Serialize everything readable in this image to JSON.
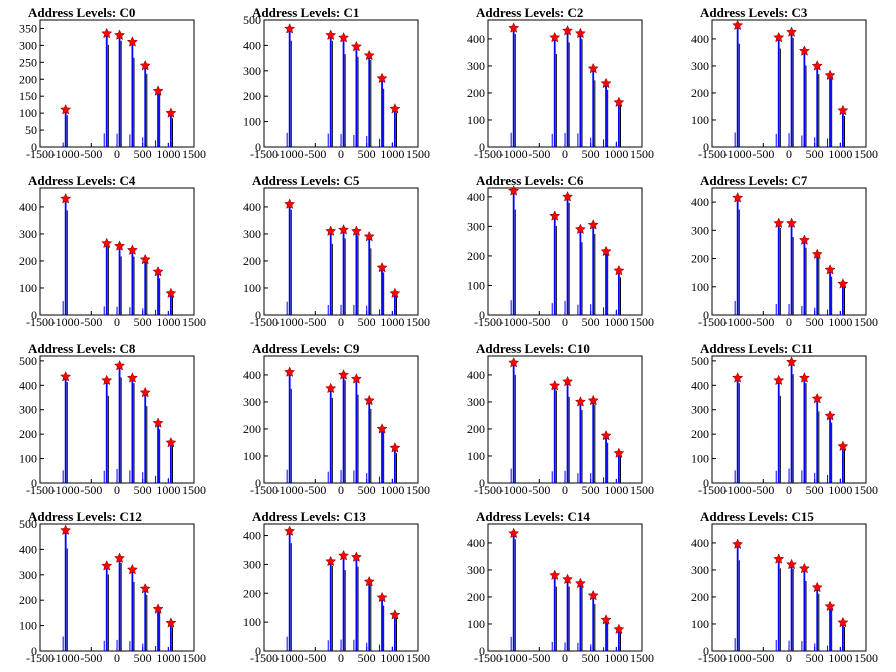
{
  "marker_color": "#ff0000",
  "bar_colors": {
    "peak": "#0000ff",
    "secondary": "#000000"
  },
  "chart_data": [
    {
      "type": "bar",
      "title": "Address Levels: C0",
      "xlim": [
        -1500,
        1500
      ],
      "ylim": [
        0,
        375
      ],
      "yticks": [
        0,
        50,
        100,
        150,
        200,
        250,
        300,
        350
      ],
      "xticks": [
        -1500,
        -1000,
        -500,
        0,
        500,
        1000,
        1500
      ],
      "x": [
        -1000,
        -200,
        50,
        300,
        550,
        800,
        1050
      ],
      "values": [
        110,
        335,
        330,
        310,
        240,
        165,
        100
      ]
    },
    {
      "type": "bar",
      "title": "Address Levels: C1",
      "xlim": [
        -1500,
        1500
      ],
      "ylim": [
        0,
        500
      ],
      "yticks": [
        0,
        100,
        200,
        300,
        400,
        500
      ],
      "xticks": [
        -1500,
        -1000,
        -500,
        0,
        500,
        1000,
        1500
      ],
      "x": [
        -1000,
        -200,
        50,
        300,
        550,
        800,
        1050
      ],
      "values": [
        465,
        440,
        430,
        395,
        360,
        270,
        150
      ]
    },
    {
      "type": "bar",
      "title": "Address Levels: C2",
      "xlim": [
        -1500,
        1500
      ],
      "ylim": [
        0,
        470
      ],
      "yticks": [
        0,
        100,
        200,
        300,
        400
      ],
      "xticks": [
        -1500,
        -1000,
        -500,
        0,
        500,
        1000,
        1500
      ],
      "x": [
        -1000,
        -200,
        50,
        300,
        550,
        800,
        1050
      ],
      "values": [
        440,
        405,
        430,
        420,
        290,
        235,
        165
      ]
    },
    {
      "type": "bar",
      "title": "Address Levels: C3",
      "xlim": [
        -1500,
        1500
      ],
      "ylim": [
        0,
        470
      ],
      "yticks": [
        0,
        100,
        200,
        300,
        400
      ],
      "xticks": [
        -1500,
        -1000,
        -500,
        0,
        500,
        1000,
        1500
      ],
      "x": [
        -1000,
        -200,
        50,
        300,
        550,
        800,
        1050
      ],
      "values": [
        450,
        405,
        425,
        355,
        300,
        265,
        135
      ]
    },
    {
      "type": "bar",
      "title": "Address Levels: C4",
      "xlim": [
        -1500,
        1500
      ],
      "ylim": [
        0,
        470
      ],
      "yticks": [
        0,
        100,
        200,
        300,
        400
      ],
      "xticks": [
        -1500,
        -1000,
        -500,
        0,
        500,
        1000,
        1500
      ],
      "x": [
        -1000,
        -200,
        50,
        300,
        550,
        800,
        1050
      ],
      "values": [
        430,
        265,
        255,
        240,
        205,
        160,
        80
      ]
    },
    {
      "type": "bar",
      "title": "Address Levels: C5",
      "xlim": [
        -1500,
        1500
      ],
      "ylim": [
        0,
        470
      ],
      "yticks": [
        0,
        100,
        200,
        300,
        400
      ],
      "xticks": [
        -1500,
        -1000,
        -500,
        0,
        500,
        1000,
        1500
      ],
      "x": [
        -1000,
        -200,
        50,
        300,
        550,
        800,
        1050
      ],
      "values": [
        410,
        310,
        315,
        310,
        290,
        175,
        80
      ]
    },
    {
      "type": "bar",
      "title": "Address Levels: C6",
      "xlim": [
        -1500,
        1500
      ],
      "ylim": [
        0,
        430
      ],
      "yticks": [
        0,
        100,
        200,
        300,
        400
      ],
      "xticks": [
        -1500,
        -1000,
        -500,
        0,
        500,
        1000,
        1500
      ],
      "x": [
        -1000,
        -200,
        50,
        300,
        550,
        800,
        1050
      ],
      "values": [
        420,
        335,
        400,
        290,
        305,
        215,
        150
      ]
    },
    {
      "type": "bar",
      "title": "Address Levels: C7",
      "xlim": [
        -1500,
        1500
      ],
      "ylim": [
        0,
        450
      ],
      "yticks": [
        0,
        100,
        200,
        300,
        400
      ],
      "xticks": [
        -1500,
        -1000,
        -500,
        0,
        500,
        1000,
        1500
      ],
      "x": [
        -1000,
        -200,
        50,
        300,
        550,
        800,
        1050
      ],
      "values": [
        415,
        325,
        325,
        265,
        215,
        160,
        110
      ]
    },
    {
      "type": "bar",
      "title": "Address Levels: C8",
      "xlim": [
        -1500,
        1500
      ],
      "ylim": [
        0,
        520
      ],
      "yticks": [
        0,
        100,
        200,
        300,
        400,
        500
      ],
      "xticks": [
        -1500,
        -1000,
        -500,
        0,
        500,
        1000,
        1500
      ],
      "x": [
        -1000,
        -200,
        50,
        300,
        550,
        800,
        1050
      ],
      "values": [
        435,
        420,
        480,
        430,
        370,
        245,
        165
      ]
    },
    {
      "type": "bar",
      "title": "Address Levels: C9",
      "xlim": [
        -1500,
        1500
      ],
      "ylim": [
        0,
        470
      ],
      "yticks": [
        0,
        100,
        200,
        300,
        400
      ],
      "xticks": [
        -1500,
        -1000,
        -500,
        0,
        500,
        1000,
        1500
      ],
      "x": [
        -1000,
        -200,
        50,
        300,
        550,
        800,
        1050
      ],
      "values": [
        410,
        350,
        400,
        385,
        305,
        200,
        130
      ]
    },
    {
      "type": "bar",
      "title": "Address Levels: C10",
      "xlim": [
        -1500,
        1500
      ],
      "ylim": [
        0,
        470
      ],
      "yticks": [
        0,
        100,
        200,
        300,
        400
      ],
      "xticks": [
        -1500,
        -1000,
        -500,
        0,
        500,
        1000,
        1500
      ],
      "x": [
        -1000,
        -200,
        50,
        300,
        550,
        800,
        1050
      ],
      "values": [
        445,
        360,
        375,
        300,
        305,
        175,
        110
      ]
    },
    {
      "type": "bar",
      "title": "Address Levels: C11",
      "xlim": [
        -1500,
        1500
      ],
      "ylim": [
        0,
        520
      ],
      "yticks": [
        0,
        100,
        200,
        300,
        400,
        500
      ],
      "xticks": [
        -1500,
        -1000,
        -500,
        0,
        500,
        1000,
        1500
      ],
      "x": [
        -1000,
        -200,
        50,
        300,
        550,
        800,
        1050
      ],
      "values": [
        430,
        420,
        495,
        430,
        345,
        275,
        150
      ]
    },
    {
      "type": "bar",
      "title": "Address Levels: C12",
      "xlim": [
        -1500,
        1500
      ],
      "ylim": [
        0,
        500
      ],
      "yticks": [
        0,
        100,
        200,
        300,
        400,
        500
      ],
      "xticks": [
        -1500,
        -1000,
        -500,
        0,
        500,
        1000,
        1500
      ],
      "x": [
        -1000,
        -200,
        50,
        300,
        550,
        800,
        1050
      ],
      "values": [
        475,
        335,
        365,
        320,
        245,
        165,
        110
      ]
    },
    {
      "type": "bar",
      "title": "Address Levels: C13",
      "xlim": [
        -1500,
        1500
      ],
      "ylim": [
        0,
        440
      ],
      "yticks": [
        0,
        100,
        200,
        300,
        400
      ],
      "xticks": [
        -1500,
        -1000,
        -500,
        0,
        500,
        1000,
        1500
      ],
      "x": [
        -1000,
        -200,
        50,
        300,
        550,
        800,
        1050
      ],
      "values": [
        415,
        310,
        330,
        325,
        240,
        185,
        125
      ]
    },
    {
      "type": "bar",
      "title": "Address Levels: C14",
      "xlim": [
        -1500,
        1500
      ],
      "ylim": [
        0,
        470
      ],
      "yticks": [
        0,
        100,
        200,
        300,
        400
      ],
      "xticks": [
        -1500,
        -1000,
        -500,
        0,
        500,
        1000,
        1500
      ],
      "x": [
        -1000,
        -200,
        50,
        300,
        550,
        800,
        1050
      ],
      "values": [
        435,
        280,
        265,
        250,
        205,
        115,
        80
      ]
    },
    {
      "type": "bar",
      "title": "Address Levels: C15",
      "xlim": [
        -1500,
        1500
      ],
      "ylim": [
        0,
        470
      ],
      "yticks": [
        0,
        100,
        200,
        300,
        400
      ],
      "xticks": [
        -1500,
        -1000,
        -500,
        0,
        500,
        1000,
        1500
      ],
      "x": [
        -1000,
        -200,
        50,
        300,
        550,
        800,
        1050
      ],
      "values": [
        395,
        340,
        320,
        305,
        235,
        165,
        105
      ]
    }
  ]
}
